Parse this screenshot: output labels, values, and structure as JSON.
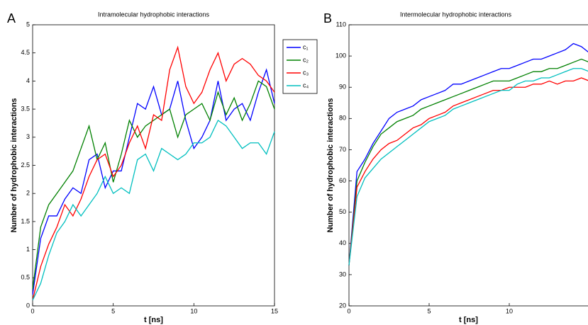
{
  "chart_data": [
    {
      "type": "line",
      "panel_label": "A",
      "title": "Intramolecular hydrophobic interactions",
      "x_label": "t [ns]",
      "y_label": "Number of hydrophobic interactions",
      "x": [
        0,
        0.5,
        1,
        1.5,
        2,
        2.5,
        3,
        3.5,
        4,
        4.5,
        5,
        5.5,
        6,
        6.5,
        7,
        7.5,
        8,
        8.5,
        9,
        9.5,
        10,
        10.5,
        11,
        11.5,
        12,
        12.5,
        13,
        13.5,
        14,
        14.5,
        15
      ],
      "xlim": [
        0,
        15
      ],
      "xticks": [
        0,
        5,
        10,
        15
      ],
      "ylim": [
        0,
        5
      ],
      "yticks": [
        0,
        0.5,
        1,
        1.5,
        2,
        2.5,
        3,
        3.5,
        4,
        4.5,
        5
      ],
      "legend": "outside right",
      "series": [
        {
          "name": "c₁",
          "color": "#0000ff",
          "values": [
            0.2,
            1.2,
            1.6,
            1.6,
            1.9,
            2.1,
            2.0,
            2.6,
            2.7,
            2.1,
            2.4,
            2.4,
            3.0,
            3.6,
            3.5,
            3.9,
            3.4,
            3.5,
            4.0,
            3.3,
            2.8,
            3.0,
            3.3,
            4.0,
            3.3,
            3.5,
            3.6,
            3.3,
            3.8,
            4.2,
            3.6
          ]
        },
        {
          "name": "c₂",
          "color": "#008000",
          "values": [
            0.3,
            1.4,
            1.8,
            2.0,
            2.2,
            2.4,
            2.8,
            3.2,
            2.6,
            2.9,
            2.2,
            2.7,
            3.3,
            3.0,
            3.2,
            3.3,
            3.4,
            3.5,
            3.0,
            3.4,
            3.5,
            3.6,
            3.3,
            3.8,
            3.4,
            3.7,
            3.3,
            3.6,
            4.0,
            3.9,
            3.5
          ]
        },
        {
          "name": "c₃",
          "color": "#ff0000",
          "values": [
            0.1,
            0.7,
            1.1,
            1.4,
            1.8,
            1.6,
            1.9,
            2.3,
            2.6,
            2.7,
            2.3,
            2.5,
            2.9,
            3.2,
            2.8,
            3.4,
            3.3,
            4.2,
            4.6,
            3.9,
            3.6,
            3.8,
            4.2,
            4.5,
            4.0,
            4.3,
            4.4,
            4.3,
            4.1,
            4.0,
            3.8
          ]
        },
        {
          "name": "c₄",
          "color": "#00bfbf",
          "values": [
            0.1,
            0.4,
            0.9,
            1.3,
            1.5,
            1.8,
            1.6,
            1.8,
            2.0,
            2.3,
            2.0,
            2.1,
            2.0,
            2.6,
            2.7,
            2.4,
            2.8,
            2.7,
            2.6,
            2.7,
            2.9,
            2.9,
            3.0,
            3.3,
            3.2,
            3.0,
            2.8,
            2.9,
            2.9,
            2.7,
            3.1
          ]
        }
      ]
    },
    {
      "type": "line",
      "panel_label": "B",
      "title": "Intermolecular hydrophobic interactions",
      "x_label": "t [ns]",
      "y_label": "Number of hydrophobic interactions",
      "x": [
        0,
        0.5,
        1,
        1.5,
        2,
        2.5,
        3,
        3.5,
        4,
        4.5,
        5,
        5.5,
        6,
        6.5,
        7,
        7.5,
        8,
        8.5,
        9,
        9.5,
        10,
        10.5,
        11,
        11.5,
        12,
        12.5,
        13,
        13.5,
        14,
        14.5,
        15
      ],
      "xlim": [
        0,
        15
      ],
      "xticks": [
        0,
        5,
        10
      ],
      "ylim": [
        20,
        110
      ],
      "yticks": [
        20,
        30,
        40,
        50,
        60,
        70,
        80,
        90,
        100,
        110
      ],
      "series": [
        {
          "color": "#0000ff",
          "values": [
            33,
            63,
            67,
            72,
            76,
            80,
            82,
            83,
            84,
            86,
            87,
            88,
            89,
            91,
            91,
            92,
            93,
            94,
            95,
            96,
            96,
            97,
            98,
            99,
            99,
            100,
            101,
            102,
            104,
            103,
            101
          ]
        },
        {
          "color": "#008000",
          "values": [
            33,
            60,
            66,
            71,
            75,
            77,
            79,
            80,
            81,
            83,
            84,
            85,
            86,
            87,
            88,
            89,
            90,
            91,
            92,
            92,
            92,
            93,
            94,
            95,
            95,
            96,
            96,
            97,
            98,
            99,
            98
          ]
        },
        {
          "color": "#ff0000",
          "values": [
            33,
            58,
            63,
            67,
            70,
            72,
            73,
            75,
            77,
            78,
            80,
            81,
            82,
            84,
            85,
            86,
            87,
            88,
            89,
            89,
            90,
            90,
            90,
            91,
            91,
            92,
            91,
            92,
            92,
            93,
            92
          ]
        },
        {
          "color": "#00bfbf",
          "values": [
            33,
            55,
            61,
            64,
            67,
            69,
            71,
            73,
            75,
            77,
            79,
            80,
            81,
            83,
            84,
            85,
            86,
            87,
            88,
            89,
            89,
            91,
            92,
            92,
            93,
            93,
            94,
            95,
            96,
            96,
            95
          ]
        }
      ]
    }
  ]
}
